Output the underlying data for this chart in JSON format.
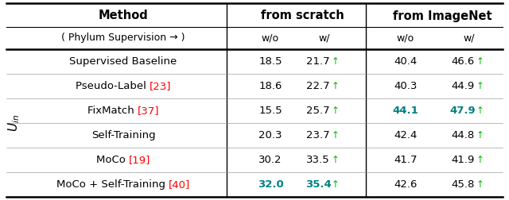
{
  "header1": [
    "Method",
    "from scratch",
    "from ImageNet"
  ],
  "header2": [
    "( Phylum Supervision → )",
    "w/o",
    "w/",
    "w/o",
    "w/"
  ],
  "rows": [
    {
      "method_parts": [
        {
          "text": "Supervised Baseline",
          "color": "#000000",
          "bold": false
        }
      ],
      "scratch_wo": {
        "text": "18.5",
        "color": "#000000",
        "bold": false
      },
      "scratch_w": {
        "text": "21.7",
        "color": "#000000",
        "bold": false
      },
      "imagenet_wo": {
        "text": "40.4",
        "color": "#000000",
        "bold": false
      },
      "imagenet_w": {
        "text": "46.6",
        "color": "#000000",
        "bold": false
      }
    },
    {
      "method_parts": [
        {
          "text": "Pseudo-Label ",
          "color": "#000000",
          "bold": false
        },
        {
          "text": "[23]",
          "color": "#FF0000",
          "bold": false
        }
      ],
      "scratch_wo": {
        "text": "18.6",
        "color": "#000000",
        "bold": false
      },
      "scratch_w": {
        "text": "22.7",
        "color": "#000000",
        "bold": false
      },
      "imagenet_wo": {
        "text": "40.3",
        "color": "#000000",
        "bold": false
      },
      "imagenet_w": {
        "text": "44.9",
        "color": "#000000",
        "bold": false
      }
    },
    {
      "method_parts": [
        {
          "text": "FixMatch ",
          "color": "#000000",
          "bold": false
        },
        {
          "text": "[37]",
          "color": "#FF0000",
          "bold": false
        }
      ],
      "scratch_wo": {
        "text": "15.5",
        "color": "#000000",
        "bold": false
      },
      "scratch_w": {
        "text": "25.7",
        "color": "#000000",
        "bold": false
      },
      "imagenet_wo": {
        "text": "44.1",
        "color": "#008080",
        "bold": true
      },
      "imagenet_w": {
        "text": "47.9",
        "color": "#008080",
        "bold": true
      }
    },
    {
      "method_parts": [
        {
          "text": "Self-Training",
          "color": "#000000",
          "bold": false
        }
      ],
      "scratch_wo": {
        "text": "20.3",
        "color": "#000000",
        "bold": false
      },
      "scratch_w": {
        "text": "23.7",
        "color": "#000000",
        "bold": false
      },
      "imagenet_wo": {
        "text": "42.4",
        "color": "#000000",
        "bold": false
      },
      "imagenet_w": {
        "text": "44.8",
        "color": "#000000",
        "bold": false
      }
    },
    {
      "method_parts": [
        {
          "text": "MoCo ",
          "color": "#000000",
          "bold": false
        },
        {
          "text": "[19]",
          "color": "#FF0000",
          "bold": false
        }
      ],
      "scratch_wo": {
        "text": "30.2",
        "color": "#000000",
        "bold": false
      },
      "scratch_w": {
        "text": "33.5",
        "color": "#000000",
        "bold": false
      },
      "imagenet_wo": {
        "text": "41.7",
        "color": "#000000",
        "bold": false
      },
      "imagenet_w": {
        "text": "41.9",
        "color": "#000000",
        "bold": false
      }
    },
    {
      "method_parts": [
        {
          "text": "MoCo + Self-Training ",
          "color": "#000000",
          "bold": false
        },
        {
          "text": "[40]",
          "color": "#FF0000",
          "bold": false
        }
      ],
      "scratch_wo": {
        "text": "32.0",
        "color": "#008080",
        "bold": true
      },
      "scratch_w": {
        "text": "35.4",
        "color": "#008080",
        "bold": true
      },
      "imagenet_wo": {
        "text": "42.6",
        "color": "#000000",
        "bold": false
      },
      "imagenet_w": {
        "text": "45.8",
        "color": "#000000",
        "bold": false
      }
    }
  ],
  "arrow_color": "#00BB00",
  "bg_color": "#FFFFFF",
  "fs_header": 10.5,
  "fs_sub": 9.0,
  "fs_data": 9.5,
  "fs_uin": 11.0
}
